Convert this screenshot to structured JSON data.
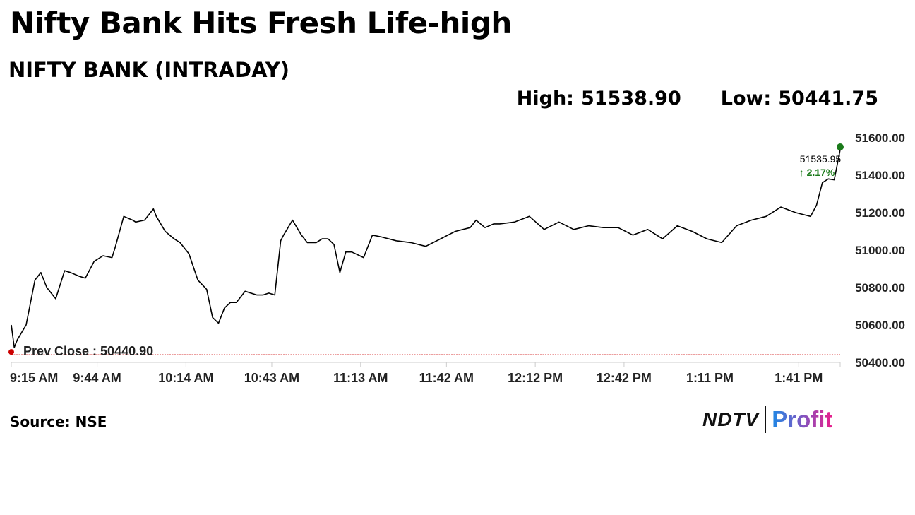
{
  "headline": "Nifty Bank Hits Fresh Life-high",
  "subheadline": "NIFTY BANK (INTRADAY)",
  "stats": {
    "high_label": "High:",
    "high_value": "51538.90",
    "low_label": "Low:",
    "low_value": "50441.75"
  },
  "source": "Source: NSE",
  "logo": {
    "primary": "NDTV",
    "secondary": "Profit"
  },
  "colors": {
    "line": "#000000",
    "prev_close": "#cc0000",
    "last_marker": "#1a7a1a",
    "change_up": "#1a7a1a",
    "axis": "#cccccc"
  },
  "chart_data": {
    "type": "line",
    "title": "NIFTY BANK (INTRADAY)",
    "xlabel": "",
    "ylabel": "",
    "x_tick_labels": [
      "9:15 AM",
      "9:44 AM",
      "10:14 AM",
      "10:43 AM",
      "11:13 AM",
      "11:42 AM",
      "12:12 PM",
      "12:42 PM",
      "1:11 PM",
      "1:41 PM"
    ],
    "y_tick_labels": [
      "50400.00",
      "50600.00",
      "50800.00",
      "51000.00",
      "51200.00",
      "51400.00",
      "51600.00"
    ],
    "ylim": [
      50400,
      51600
    ],
    "x_start": "9:15 AM",
    "x_end": "1:55 PM",
    "prev_close": {
      "label": "Prev Close : 50440.90",
      "value": 50440.9
    },
    "last": {
      "value_label": "51535.95",
      "change_label": "↑ 2.17%",
      "value": 51535.95
    },
    "series": [
      {
        "x": [
          "9:15",
          "9:16",
          "9:17",
          "9:20",
          "9:23",
          "9:25",
          "9:27",
          "9:30",
          "9:33",
          "9:35",
          "9:38",
          "9:40",
          "9:43",
          "9:46",
          "9:49",
          "9:50",
          "9:53",
          "9:56",
          "9:57",
          "10:00",
          "10:03",
          "10:04",
          "10:07",
          "10:10",
          "10:12",
          "10:15",
          "10:18",
          "10:21",
          "10:23",
          "10:25",
          "10:27",
          "10:29",
          "10:31",
          "10:34",
          "10:38",
          "10:40",
          "10:42",
          "10:44",
          "10:46",
          "10:47",
          "10:50",
          "10:53",
          "10:55",
          "10:58",
          "11:00",
          "11:02",
          "11:04",
          "11:06",
          "11:08",
          "11:10",
          "11:14",
          "11:17",
          "11:20",
          "11:25",
          "11:30",
          "11:35",
          "11:40",
          "11:45",
          "11:50",
          "11:52",
          "11:55",
          "11:58",
          "12:00",
          "12:05",
          "12:10",
          "12:15",
          "12:20",
          "12:25",
          "12:30",
          "12:35",
          "12:40",
          "12:45",
          "12:50",
          "12:55",
          "13:00",
          "13:05",
          "13:10",
          "13:15",
          "13:20",
          "13:25",
          "13:30",
          "13:35",
          "13:40",
          "13:45",
          "13:47",
          "13:49",
          "13:51",
          "13:53",
          "13:55"
        ],
        "values": [
          50600,
          50480,
          50520,
          50600,
          50840,
          50880,
          50800,
          50740,
          50890,
          50880,
          50860,
          50850,
          50940,
          50970,
          50960,
          51010,
          51180,
          51160,
          51150,
          51160,
          51220,
          51180,
          51100,
          51060,
          51040,
          50980,
          50840,
          50790,
          50640,
          50610,
          50690,
          50720,
          50720,
          50780,
          50760,
          50760,
          50770,
          50760,
          51050,
          51080,
          51160,
          51080,
          51040,
          51040,
          51060,
          51060,
          51030,
          50880,
          50990,
          50990,
          50960,
          51080,
          51070,
          51050,
          51040,
          51020,
          51060,
          51100,
          51120,
          51160,
          51120,
          51140,
          51140,
          51150,
          51180,
          51110,
          51150,
          51110,
          51130,
          51120,
          51120,
          51080,
          51110,
          51060,
          51130,
          51100,
          51060,
          51040,
          51130,
          51160,
          51180,
          51230,
          51200,
          51180,
          51240,
          51360,
          51380,
          51375,
          51535.95
        ]
      }
    ]
  }
}
